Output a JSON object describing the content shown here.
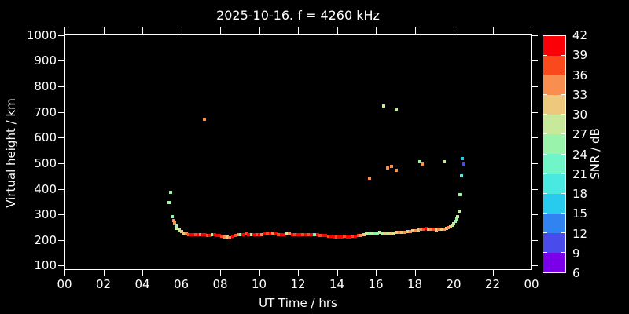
{
  "title": "2025-10-16. f = 4260 kHz",
  "axes": {
    "xlabel": "UT Time / hrs",
    "ylabel": "Virtual height / km",
    "x_tick_labels": [
      "00",
      "02",
      "04",
      "06",
      "08",
      "10",
      "12",
      "14",
      "16",
      "18",
      "20",
      "22",
      "00"
    ],
    "x_tick_hours": [
      0,
      2,
      4,
      6,
      8,
      10,
      12,
      14,
      16,
      18,
      20,
      22,
      24
    ],
    "y_tick_values": [
      100,
      200,
      300,
      400,
      500,
      600,
      700,
      800,
      900,
      1000
    ],
    "x_range_hours": [
      0,
      24
    ],
    "y_range_km": [
      83,
      1005
    ],
    "grid": false
  },
  "colorbar": {
    "label": "SNR / dB",
    "tick_labels": [
      "42",
      "39",
      "36",
      "33",
      "30",
      "27",
      "24",
      "21",
      "18",
      "15",
      "12",
      "9",
      "6"
    ],
    "segments_bottom_to_top": [
      {
        "range_db": [
          6,
          9
        ],
        "color": "#7B00E9"
      },
      {
        "range_db": [
          9,
          12
        ],
        "color": "#4A4BEB"
      },
      {
        "range_db": [
          12,
          15
        ],
        "color": "#3183F2"
      },
      {
        "range_db": [
          15,
          18
        ],
        "color": "#28CBEE"
      },
      {
        "range_db": [
          18,
          21
        ],
        "color": "#49E8E0"
      },
      {
        "range_db": [
          21,
          24
        ],
        "color": "#70F5C8"
      },
      {
        "range_db": [
          24,
          27
        ],
        "color": "#9AF3AB"
      },
      {
        "range_db": [
          27,
          30
        ],
        "color": "#C9E99A"
      },
      {
        "range_db": [
          30,
          33
        ],
        "color": "#EDC87D"
      },
      {
        "range_db": [
          33,
          36
        ],
        "color": "#F98E51"
      },
      {
        "range_db": [
          36,
          39
        ],
        "color": "#FA4A1D"
      },
      {
        "range_db": [
          39,
          42
        ],
        "color": "#FB0107"
      }
    ]
  },
  "chart_data": {
    "type": "scatter",
    "title": "2025-10-16. f = 4260 kHz",
    "xlabel": "UT Time / hrs",
    "ylabel": "Virtual height / km",
    "color_encodes": "SNR / dB",
    "xlim": [
      0,
      24
    ],
    "ylim": [
      83,
      1005
    ],
    "legend_position": "right-colorbar",
    "point_format": [
      "time_hr",
      "virtual_height_km",
      "snr_db"
    ],
    "points": [
      [
        5.37,
        347,
        25
      ],
      [
        5.45,
        386,
        25
      ],
      [
        5.54,
        292,
        25
      ],
      [
        5.62,
        276,
        34
      ],
      [
        5.66,
        267,
        34
      ],
      [
        5.74,
        258,
        25
      ],
      [
        5.78,
        246,
        28
      ],
      [
        5.9,
        240,
        28
      ],
      [
        6.02,
        233,
        31
      ],
      [
        6.14,
        227,
        31
      ],
      [
        6.26,
        225,
        34
      ],
      [
        6.38,
        222,
        37
      ],
      [
        6.5,
        221,
        40
      ],
      [
        6.62,
        220,
        40
      ],
      [
        6.74,
        222,
        37
      ],
      [
        6.86,
        220,
        40
      ],
      [
        6.98,
        221,
        34
      ],
      [
        7.1,
        222,
        40
      ],
      [
        7.22,
        220,
        40
      ],
      [
        7.34,
        218,
        37
      ],
      [
        7.46,
        219,
        40
      ],
      [
        7.58,
        221,
        28
      ],
      [
        7.7,
        220,
        40
      ],
      [
        7.82,
        219,
        40
      ],
      [
        7.95,
        217,
        40
      ],
      [
        8.08,
        215,
        37
      ],
      [
        8.22,
        213,
        34
      ],
      [
        8.36,
        211,
        31
      ],
      [
        8.5,
        210,
        34
      ],
      [
        8.64,
        214,
        40
      ],
      [
        8.78,
        218,
        37
      ],
      [
        8.92,
        221,
        34
      ],
      [
        9.05,
        220,
        25
      ],
      [
        9.18,
        221,
        40
      ],
      [
        9.32,
        223,
        37
      ],
      [
        9.46,
        222,
        40
      ],
      [
        9.6,
        220,
        28
      ],
      [
        9.74,
        222,
        40
      ],
      [
        9.88,
        221,
        37
      ],
      [
        10.02,
        220,
        40
      ],
      [
        10.16,
        222,
        34
      ],
      [
        10.3,
        224,
        40
      ],
      [
        10.44,
        226,
        37
      ],
      [
        10.58,
        228,
        40
      ],
      [
        10.72,
        227,
        34
      ],
      [
        10.86,
        225,
        40
      ],
      [
        11.0,
        222,
        37
      ],
      [
        11.14,
        220,
        40
      ],
      [
        11.28,
        222,
        40
      ],
      [
        11.42,
        224,
        28
      ],
      [
        11.56,
        223,
        34
      ],
      [
        11.7,
        222,
        40
      ],
      [
        11.84,
        221,
        37
      ],
      [
        11.98,
        222,
        40
      ],
      [
        12.12,
        220,
        40
      ],
      [
        12.26,
        221,
        37
      ],
      [
        12.4,
        222,
        40
      ],
      [
        12.54,
        221,
        37
      ],
      [
        12.68,
        220,
        40
      ],
      [
        12.85,
        222,
        22
      ],
      [
        13.0,
        220,
        40
      ],
      [
        13.14,
        219,
        37
      ],
      [
        13.28,
        218,
        40
      ],
      [
        13.42,
        217,
        40
      ],
      [
        13.56,
        216,
        37
      ],
      [
        13.7,
        214,
        40
      ],
      [
        13.84,
        213,
        40
      ],
      [
        13.98,
        212,
        37
      ],
      [
        14.12,
        213,
        40
      ],
      [
        14.26,
        212,
        40
      ],
      [
        14.4,
        214,
        37
      ],
      [
        14.54,
        212,
        40
      ],
      [
        14.68,
        213,
        40
      ],
      [
        14.82,
        215,
        37
      ],
      [
        14.96,
        216,
        40
      ],
      [
        15.1,
        217,
        37
      ],
      [
        15.24,
        219,
        34
      ],
      [
        15.38,
        221,
        31
      ],
      [
        15.52,
        223,
        28
      ],
      [
        15.66,
        225,
        25
      ],
      [
        15.8,
        226,
        28
      ],
      [
        15.94,
        228,
        22
      ],
      [
        16.08,
        227,
        25
      ],
      [
        16.22,
        229,
        28
      ],
      [
        16.36,
        227,
        25
      ],
      [
        16.5,
        226,
        31
      ],
      [
        16.64,
        228,
        28
      ],
      [
        16.78,
        227,
        31
      ],
      [
        16.92,
        228,
        28
      ],
      [
        17.06,
        229,
        31
      ],
      [
        17.2,
        229,
        34
      ],
      [
        17.34,
        230,
        31
      ],
      [
        17.48,
        231,
        34
      ],
      [
        17.62,
        232,
        31
      ],
      [
        17.76,
        233,
        34
      ],
      [
        17.9,
        235,
        31
      ],
      [
        18.04,
        237,
        34
      ],
      [
        18.18,
        239,
        31
      ],
      [
        18.32,
        241,
        34
      ],
      [
        18.46,
        243,
        37
      ],
      [
        18.6,
        244,
        40
      ],
      [
        18.72,
        242,
        31
      ],
      [
        18.84,
        243,
        34
      ],
      [
        18.96,
        241,
        37
      ],
      [
        19.1,
        240,
        31
      ],
      [
        19.24,
        241,
        34
      ],
      [
        19.38,
        242,
        31
      ],
      [
        19.5,
        243,
        34
      ],
      [
        19.62,
        245,
        31
      ],
      [
        19.72,
        248,
        34
      ],
      [
        19.82,
        252,
        31
      ],
      [
        19.92,
        258,
        28
      ],
      [
        20.0,
        264,
        28
      ],
      [
        20.08,
        272,
        25
      ],
      [
        20.15,
        281,
        25
      ],
      [
        20.21,
        292,
        28
      ],
      [
        20.28,
        312,
        28
      ],
      [
        20.32,
        376,
        25
      ],
      [
        7.19,
        671,
        34
      ],
      [
        15.66,
        441,
        34
      ],
      [
        16.4,
        722,
        28
      ],
      [
        17.05,
        710,
        28
      ],
      [
        16.61,
        481,
        34
      ],
      [
        16.81,
        487,
        34
      ],
      [
        17.06,
        471,
        34
      ],
      [
        18.25,
        505,
        25
      ],
      [
        18.38,
        496,
        34
      ],
      [
        19.52,
        506,
        28
      ],
      [
        20.4,
        452,
        19
      ],
      [
        20.44,
        518,
        16
      ],
      [
        20.52,
        497,
        10
      ]
    ]
  }
}
